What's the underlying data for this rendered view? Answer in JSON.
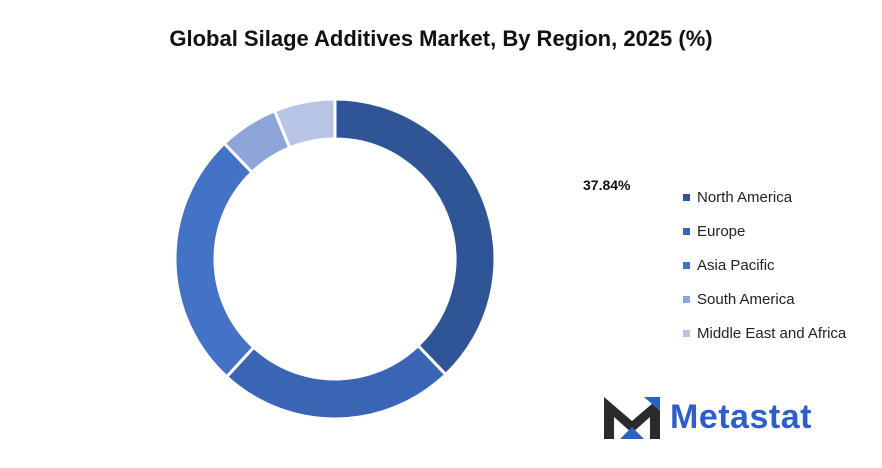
{
  "title": "Global Silage Additives Market, By Region, 2025 (%)",
  "callout": "37.84%",
  "brand": {
    "name": "Metastat",
    "dark_color": "#2b2b2b",
    "accent_color": "#2e5fc8"
  },
  "chart_data": {
    "type": "pie",
    "variant": "donut",
    "title": "Global Silage Additives Market, By Region, 2025 (%)",
    "start_angle_deg": 0,
    "direction": "clockwise",
    "categories": [
      "North America",
      "Europe",
      "Asia Pacific",
      "South America",
      "Middle East and Africa"
    ],
    "values": [
      37.84,
      24.0,
      26.0,
      6.0,
      6.16
    ],
    "colors": [
      "#2f5597",
      "#3a64b4",
      "#4472c4",
      "#8ea5d9",
      "#b8c4e6"
    ],
    "value_labels": [
      "37.84%",
      "",
      "",
      "",
      ""
    ],
    "legend_position": "right"
  }
}
